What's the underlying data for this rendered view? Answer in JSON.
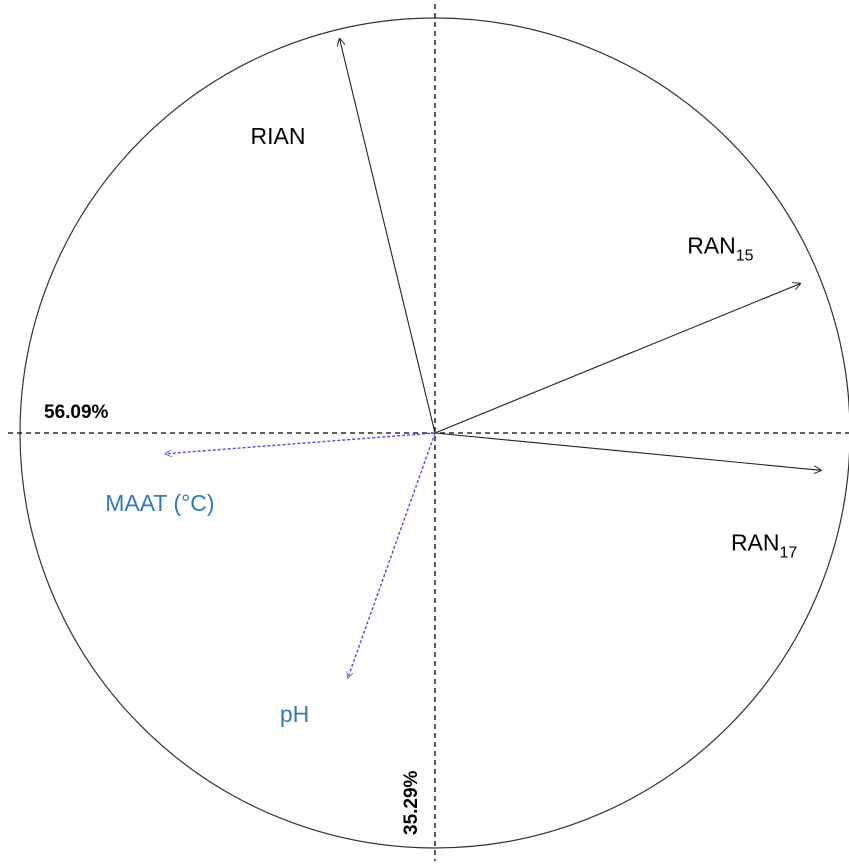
{
  "chart_data": {
    "type": "scatter",
    "title": "",
    "xlabel": "56.09%",
    "ylabel": "35.29%",
    "xlim": [
      -1,
      1
    ],
    "ylim": [
      -1,
      1
    ],
    "grid": false,
    "correlation_circle": true,
    "colors": {
      "active": "#222222",
      "supplementary": "#4a4aee",
      "supplementary_label": "#2e7bbf",
      "axis": "#000000",
      "circle": "#333333"
    },
    "series": [
      {
        "name": "",
        "style": "solid",
        "points": [
          {
            "label": "RIAN",
            "label_base": "RIAN",
            "label_sub": "",
            "x": -0.23,
            "y": 0.95
          },
          {
            "label": "RAN15",
            "label_base": "RAN",
            "label_sub": "15",
            "x": 0.88,
            "y": 0.36
          },
          {
            "label": "RAN17",
            "label_base": "RAN",
            "label_sub": "17",
            "x": 0.93,
            "y": -0.09
          }
        ]
      },
      {
        "name": "",
        "style": "dashed",
        "points": [
          {
            "label": "MAAT (°C)",
            "label_base": "MAAT (°C)",
            "label_sub": "",
            "x": -0.65,
            "y": -0.05
          },
          {
            "label": "pH",
            "label_base": "pH",
            "label_sub": "",
            "x": -0.21,
            "y": -0.59
          }
        ]
      }
    ]
  }
}
